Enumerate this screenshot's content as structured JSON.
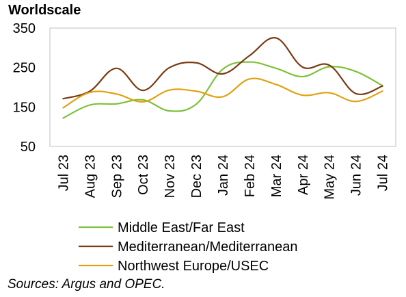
{
  "chart_data": {
    "type": "line",
    "ylabel": "Worldscale",
    "xlabel": "",
    "ylim": [
      50,
      350
    ],
    "yticks": [
      50,
      150,
      250,
      350
    ],
    "grid": false,
    "categories": [
      "Jul 23",
      "Aug 23",
      "Sep 23",
      "Oct 23",
      "Nov 23",
      "Dec 23",
      "Jan 24",
      "Feb 24",
      "Mar 24",
      "Apr 24",
      "May 24",
      "Jun 24",
      "Jul 24"
    ],
    "series": [
      {
        "name": "Middle East/Far East",
        "color": "#7dc13a",
        "values": [
          122,
          155,
          158,
          168,
          140,
          157,
          246,
          264,
          248,
          227,
          252,
          240,
          204
        ]
      },
      {
        "name": "Mediterranean/Mediterranean",
        "color": "#7a3a12",
        "values": [
          171,
          190,
          248,
          192,
          250,
          262,
          234,
          280,
          325,
          251,
          256,
          184,
          203
        ]
      },
      {
        "name": "Northwest Europe/USEC",
        "color": "#e1a00e",
        "values": [
          148,
          187,
          183,
          163,
          193,
          190,
          176,
          221,
          207,
          180,
          186,
          164,
          190
        ]
      }
    ],
    "legend_position": "bottom"
  },
  "source_note": "Sources: Argus and OPEC."
}
